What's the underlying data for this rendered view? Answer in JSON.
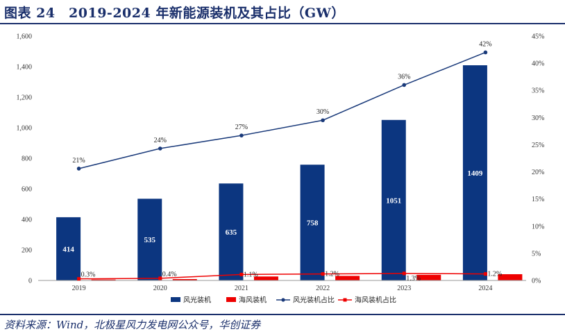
{
  "header": {
    "title": "图表 24　2019-2024 年新能源装机及其占比（GW）",
    "source": "资料来源：Wind，北极星风力发电网公众号，华创证券"
  },
  "chart_data": {
    "type": "bar",
    "categories": [
      "2019",
      "2020",
      "2021",
      "2022",
      "2023",
      "2024"
    ],
    "series": [
      {
        "name": "风光装机",
        "kind": "bar",
        "axis": "left",
        "color": "#0c3680",
        "values": [
          414,
          535,
          635,
          758,
          1051,
          1409
        ],
        "labels": [
          "414",
          "535",
          "635",
          "758",
          "1051",
          "1409"
        ]
      },
      {
        "name": "海风装机",
        "kind": "bar",
        "axis": "left",
        "color": "#ee0000",
        "values": [
          6,
          9,
          26,
          30,
          37,
          41
        ]
      },
      {
        "name": "风光装机占比",
        "kind": "line",
        "axis": "right",
        "color": "#1a3a7a",
        "values": [
          20.6,
          24.3,
          26.7,
          29.5,
          36.0,
          42.0
        ],
        "labels": [
          "21%",
          "24%",
          "27%",
          "30%",
          "36%",
          "42%"
        ]
      },
      {
        "name": "海风装机占比",
        "kind": "line",
        "axis": "right",
        "color": "#ee0000",
        "values": [
          0.3,
          0.4,
          1.1,
          1.2,
          1.3,
          1.2
        ],
        "labels": [
          "0.3%",
          "0.4%",
          "1.1%",
          "1.2%",
          "1.3%",
          "1.2%"
        ]
      }
    ],
    "left_axis": {
      "min": 0,
      "max": 1600,
      "ticks": [
        "0",
        "200",
        "400",
        "600",
        "800",
        "1,000",
        "1,200",
        "1,400",
        "1,600"
      ]
    },
    "right_axis": {
      "min": 0,
      "max": 45,
      "ticks": [
        "0%",
        "5%",
        "10%",
        "15%",
        "20%",
        "25%",
        "30%",
        "35%",
        "40%",
        "45%"
      ]
    },
    "legend_position": "bottom",
    "grid": false
  }
}
